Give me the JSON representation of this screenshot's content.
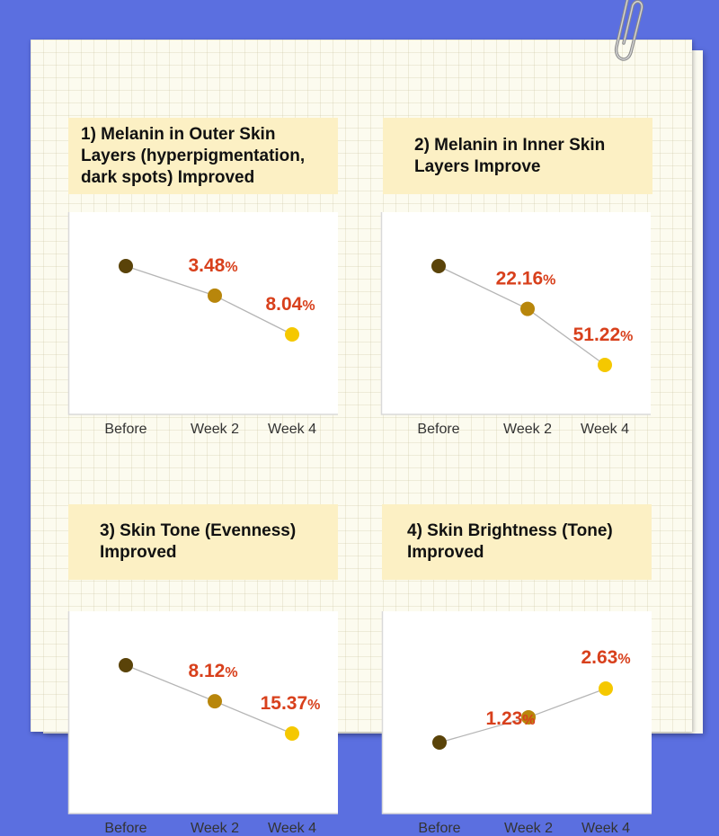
{
  "chart_data": [
    {
      "type": "line",
      "title": "1) Melanin in Outer Skin Layers (hyperpigmentation, dark spots) Improved",
      "categories": [
        "Before",
        "Week 2",
        "Week 4"
      ],
      "values": [
        0,
        -3.48,
        -8.04
      ],
      "labels": [
        "",
        "3.48",
        "8.04"
      ],
      "unit": "%"
    },
    {
      "type": "line",
      "title": "2) Melanin in Inner Skin Layers Improve",
      "categories": [
        "Before",
        "Week 2",
        "Week 4"
      ],
      "values": [
        0,
        -22.16,
        -51.22
      ],
      "labels": [
        "",
        "22.16",
        "51.22"
      ],
      "unit": "%"
    },
    {
      "type": "line",
      "title": "3) Skin Tone (Evenness) Improved",
      "categories": [
        "Before",
        "Week 2",
        "Week 4"
      ],
      "values": [
        0,
        -8.12,
        -15.37
      ],
      "labels": [
        "",
        "8.12",
        "15.37"
      ],
      "unit": "%"
    },
    {
      "type": "line",
      "title": "4) Skin Brightness (Tone) Improved",
      "categories": [
        "Before",
        "Week 2",
        "Week 4"
      ],
      "values": [
        0,
        1.23,
        2.63
      ],
      "labels": [
        "",
        "1.23",
        "2.63"
      ],
      "unit": "%"
    }
  ],
  "colors": {
    "background": "#5b6fe0",
    "title_box": "#fcf0c4",
    "value_label": "#d8401c",
    "point_before": "#5a4309",
    "point_week2": "#b8860b",
    "point_week4": "#f5c800",
    "line": "#b5b5b5"
  }
}
